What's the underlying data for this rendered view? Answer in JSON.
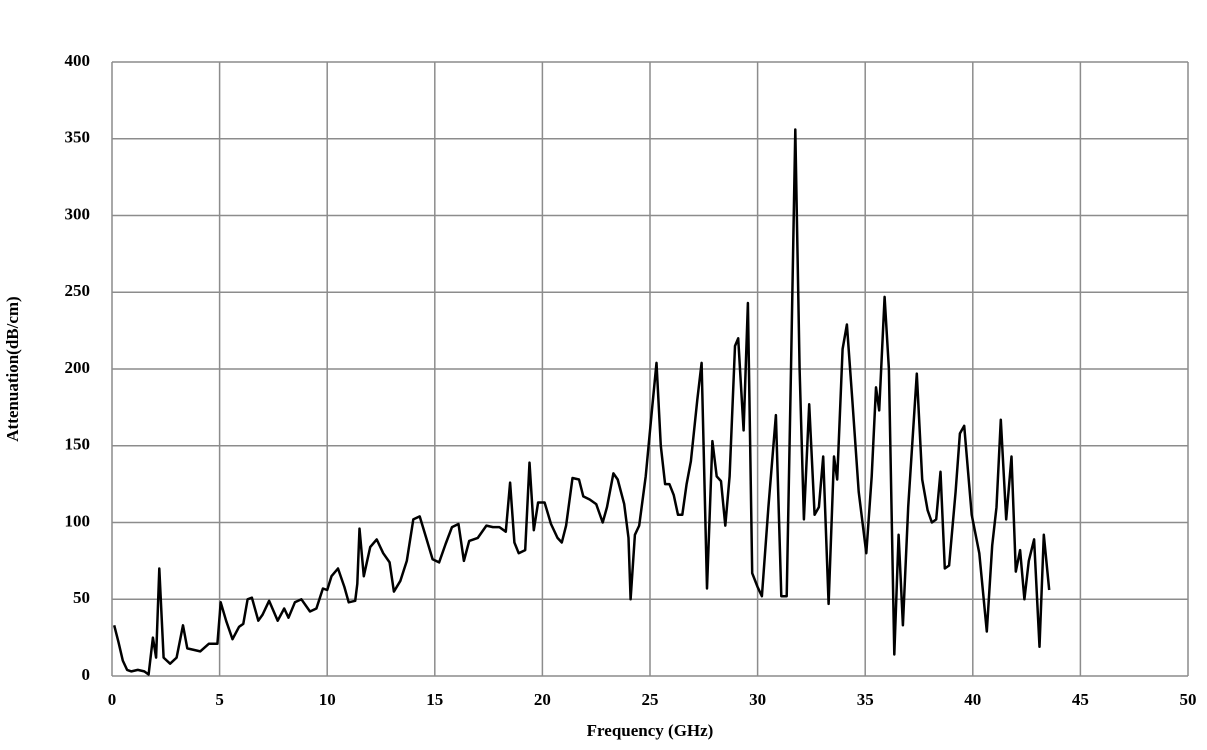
{
  "chart_data": {
    "type": "line",
    "xlabel": "Frequency (GHz)",
    "ylabel": "Attenuation(dB/cm)",
    "xlim": [
      0,
      50
    ],
    "xticks": [
      0,
      5,
      10,
      15,
      20,
      25,
      30,
      35,
      40,
      45,
      50
    ],
    "ylim": [
      0,
      400
    ],
    "yticks": [
      0,
      50,
      100,
      150,
      200,
      250,
      300,
      350,
      400
    ],
    "grid": true,
    "color": "#000000",
    "x": [
      0.1,
      0.3,
      0.5,
      0.7,
      0.9,
      1.2,
      1.5,
      1.7,
      1.9,
      2.05,
      2.2,
      2.4,
      2.7,
      3.0,
      3.3,
      3.5,
      3.8,
      4.1,
      4.5,
      4.9,
      5.05,
      5.3,
      5.6,
      5.9,
      6.1,
      6.3,
      6.5,
      6.8,
      7.0,
      7.3,
      7.7,
      8.0,
      8.2,
      8.5,
      8.8,
      9.2,
      9.5,
      9.8,
      10.0,
      10.2,
      10.5,
      10.8,
      11.0,
      11.3,
      11.4,
      11.5,
      11.7,
      12.0,
      12.3,
      12.6,
      12.9,
      13.1,
      13.4,
      13.7,
      14.0,
      14.3,
      14.6,
      14.9,
      15.2,
      15.5,
      15.8,
      16.1,
      16.35,
      16.6,
      17.0,
      17.4,
      17.7,
      18.0,
      18.3,
      18.5,
      18.7,
      18.9,
      19.2,
      19.4,
      19.6,
      19.8,
      20.1,
      20.4,
      20.7,
      20.9,
      21.1,
      21.4,
      21.7,
      21.9,
      22.2,
      22.5,
      22.8,
      23.0,
      23.3,
      23.5,
      23.8,
      24.0,
      24.1,
      24.3,
      24.5,
      24.8,
      25.1,
      25.3,
      25.5,
      25.7,
      25.9,
      26.1,
      26.3,
      26.5,
      26.7,
      26.9,
      27.2,
      27.4,
      27.65,
      27.9,
      28.1,
      28.3,
      28.5,
      28.7,
      28.95,
      29.1,
      29.35,
      29.55,
      29.75,
      30.0,
      30.2,
      30.5,
      30.85,
      31.1,
      31.35,
      31.55,
      31.75,
      31.95,
      32.15,
      32.4,
      32.65,
      32.85,
      33.05,
      33.3,
      33.55,
      33.7,
      33.95,
      34.15,
      34.4,
      34.7,
      35.05,
      35.3,
      35.5,
      35.65,
      35.9,
      36.1,
      36.35,
      36.55,
      36.75,
      37.0,
      37.4,
      37.65,
      37.9,
      38.1,
      38.3,
      38.5,
      38.7,
      38.9,
      39.2,
      39.4,
      39.6,
      39.95,
      40.3,
      40.65,
      40.9,
      41.1,
      41.3,
      41.55,
      41.8,
      42.0,
      42.2,
      42.4,
      42.6,
      42.85,
      43.1,
      43.3,
      43.55
    ],
    "values": [
      33,
      22,
      10,
      4,
      3,
      4,
      3,
      1,
      25,
      12,
      70,
      12,
      8,
      12,
      33,
      18,
      17,
      16,
      21,
      21,
      48,
      36,
      24,
      32,
      34,
      50,
      51,
      36,
      40,
      49,
      36,
      44,
      38,
      48,
      50,
      42,
      44,
      57,
      56,
      65,
      70,
      58,
      48,
      49,
      60,
      96,
      65,
      84,
      89,
      80,
      74,
      55,
      62,
      75,
      102,
      104,
      90,
      76,
      74,
      86,
      97,
      99,
      75,
      88,
      90,
      98,
      97,
      97,
      94,
      126,
      87,
      80,
      82,
      139,
      95,
      113,
      113,
      99,
      90,
      87,
      98,
      129,
      128,
      117,
      115,
      112,
      100,
      110,
      132,
      128,
      112,
      90,
      50,
      92,
      98,
      130,
      175,
      204,
      150,
      125,
      125,
      118,
      105,
      105,
      125,
      140,
      180,
      204,
      57,
      153,
      130,
      127,
      98,
      130,
      215,
      220,
      160,
      243,
      67,
      58,
      52,
      110,
      170,
      52,
      52,
      200,
      356,
      200,
      102,
      177,
      105,
      110,
      143,
      47,
      143,
      128,
      213,
      229,
      180,
      120,
      80,
      130,
      188,
      173,
      247,
      200,
      14,
      92,
      33,
      110,
      197,
      128,
      108,
      100,
      102,
      133,
      70,
      72,
      120,
      158,
      163,
      105,
      80,
      29,
      85,
      110,
      167,
      102,
      143,
      68,
      82,
      50,
      75,
      89,
      19,
      92,
      56
    ]
  }
}
